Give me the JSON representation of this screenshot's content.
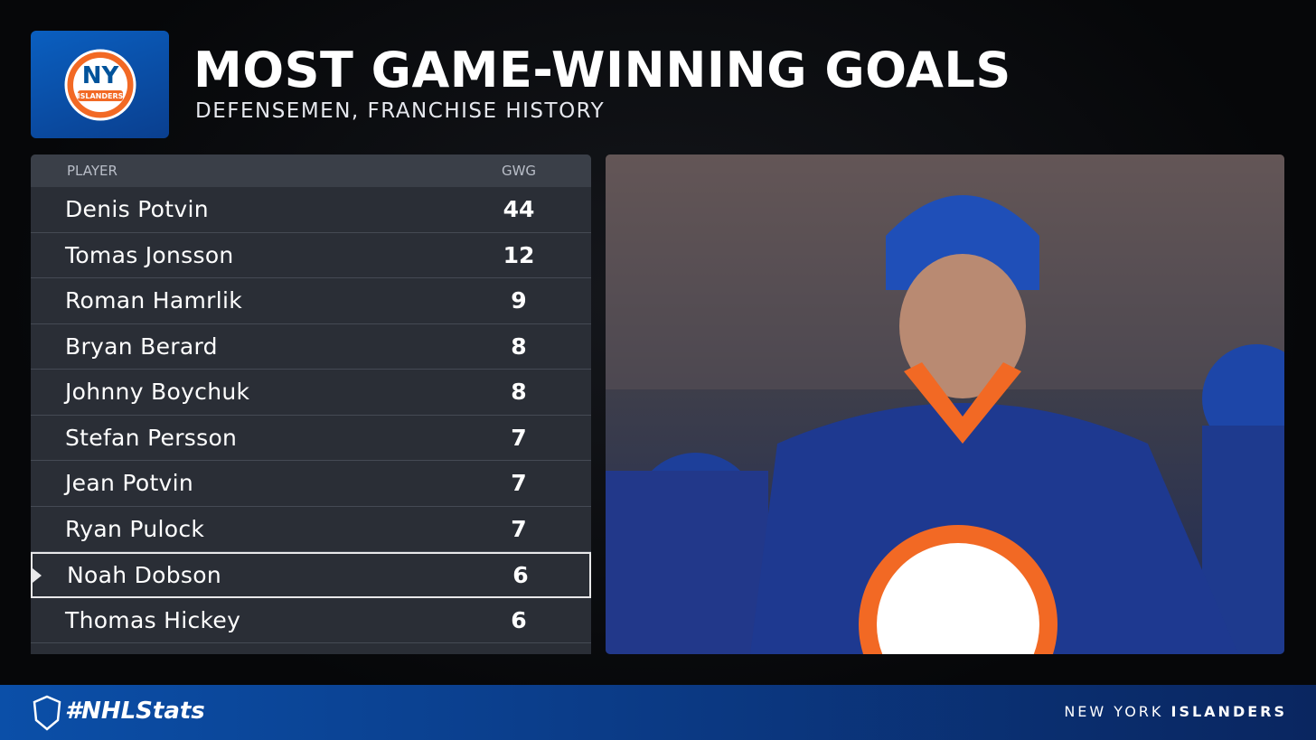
{
  "header": {
    "title": "MOST GAME-WINNING GOALS",
    "subtitle": "DEFENSEMEN, FRANCHISE HISTORY",
    "logo_text": "NY",
    "logo_name": "ISLANDERS"
  },
  "table": {
    "columns": [
      "PLAYER",
      "GWG"
    ],
    "rows": [
      {
        "player": "Denis Potvin",
        "gwg": 44
      },
      {
        "player": "Tomas Jonsson",
        "gwg": 12
      },
      {
        "player": "Roman Hamrlik",
        "gwg": 9
      },
      {
        "player": "Bryan Berard",
        "gwg": 8
      },
      {
        "player": "Johnny Boychuk",
        "gwg": 8
      },
      {
        "player": "Stefan Persson",
        "gwg": 7
      },
      {
        "player": "Jean Potvin",
        "gwg": 7
      },
      {
        "player": "Ryan Pulock",
        "gwg": 7
      },
      {
        "player": "Noah Dobson",
        "gwg": 6
      },
      {
        "player": "Thomas Hickey",
        "gwg": 6
      }
    ]
  },
  "footer": {
    "hashtag": "#NHLStats",
    "team_city": "NEW YORK",
    "team_name": "ISLANDERS"
  }
}
